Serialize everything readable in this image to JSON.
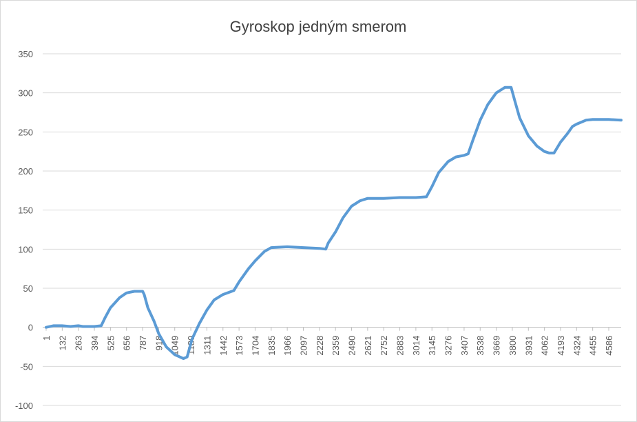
{
  "chart_data": {
    "type": "line",
    "title": "Gyroskop jedným smerom",
    "x": [
      1,
      60,
      130,
      200,
      263,
      300,
      394,
      450,
      480,
      525,
      600,
      656,
      720,
      787,
      800,
      830,
      880,
      918,
      980,
      1049,
      1120,
      1150,
      1190,
      1250,
      1311,
      1370,
      1442,
      1530,
      1573,
      1650,
      1704,
      1780,
      1835,
      1966,
      2097,
      2228,
      2280,
      2300,
      2359,
      2420,
      2490,
      2560,
      2621,
      2752,
      2883,
      3014,
      3100,
      3145,
      3200,
      3276,
      3340,
      3407,
      3440,
      3480,
      3538,
      3600,
      3669,
      3740,
      3790,
      3820,
      3860,
      3931,
      4000,
      4062,
      4100,
      4140,
      4193,
      4250,
      4290,
      4324,
      4400,
      4455,
      4586,
      4687
    ],
    "series": [
      {
        "name": "Gyroskop",
        "color": "#5b9bd5",
        "values": [
          0,
          2,
          2,
          1,
          2,
          1,
          1,
          2,
          12,
          25,
          38,
          44,
          46,
          46,
          42,
          25,
          8,
          -8,
          -25,
          -35,
          -40,
          -38,
          -15,
          5,
          22,
          35,
          42,
          47,
          58,
          75,
          85,
          97,
          102,
          103,
          102,
          101,
          100,
          108,
          122,
          140,
          155,
          162,
          165,
          165,
          166,
          166,
          167,
          180,
          198,
          212,
          218,
          220,
          222,
          240,
          265,
          285,
          300,
          307,
          307,
          290,
          268,
          245,
          232,
          225,
          223,
          223,
          237,
          248,
          257,
          260,
          265,
          266,
          266,
          265
        ]
      }
    ],
    "xlim": [
      1,
      4687
    ],
    "xticks": [
      1,
      132,
      263,
      394,
      525,
      656,
      787,
      918,
      1049,
      1180,
      1311,
      1442,
      1573,
      1704,
      1835,
      1966,
      2097,
      2228,
      2359,
      2490,
      2621,
      2752,
      2883,
      3014,
      3145,
      3276,
      3407,
      3538,
      3669,
      3800,
      3931,
      4062,
      4193,
      4324,
      4455,
      4586
    ],
    "ylim": [
      -100,
      350
    ],
    "yticks": [
      -100,
      -50,
      0,
      50,
      100,
      150,
      200,
      250,
      300,
      350
    ],
    "grid": true
  }
}
